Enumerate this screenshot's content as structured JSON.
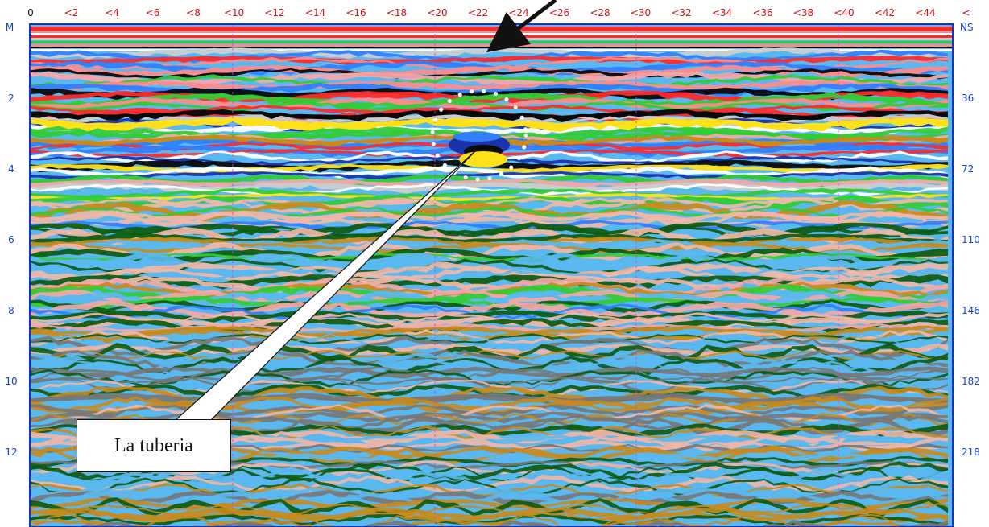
{
  "radargram": {
    "x_ticks": [
      "0",
      "<2",
      "<4",
      "<6",
      "<8",
      "<10",
      "<12",
      "<14",
      "<16",
      "<18",
      "<20",
      "<22",
      "<24",
      "<26",
      "<28",
      "<30",
      "<32",
      "<34",
      "<36",
      "<38",
      "<40",
      "<42",
      "<44",
      "<"
    ],
    "left_unit": "M",
    "left_ticks": [
      "2",
      "4",
      "6",
      "8",
      "10",
      "12"
    ],
    "right_unit": "NS",
    "right_ticks": [
      "36",
      "72",
      "110",
      "146",
      "182",
      "218"
    ],
    "colors": {
      "border": "#1133cc",
      "marker_line": "#cc44cc",
      "band_colors": [
        "#ff2a2a",
        "#ff8a8a",
        "#ffffff",
        "#33cc33",
        "#0a0a0a",
        "#ffe11a",
        "#2f7fff",
        "#f4a6a6",
        "#c98a1a",
        "#0d5a0d",
        "#5ab8f0",
        "#777777",
        "#f2b6a6",
        "#cccccc",
        "#1a33aa"
      ]
    }
  },
  "annotation": {
    "label": "La tuberia",
    "target_icon": "dotted-circle-icon",
    "arrow_icon": "arrow-icon"
  }
}
